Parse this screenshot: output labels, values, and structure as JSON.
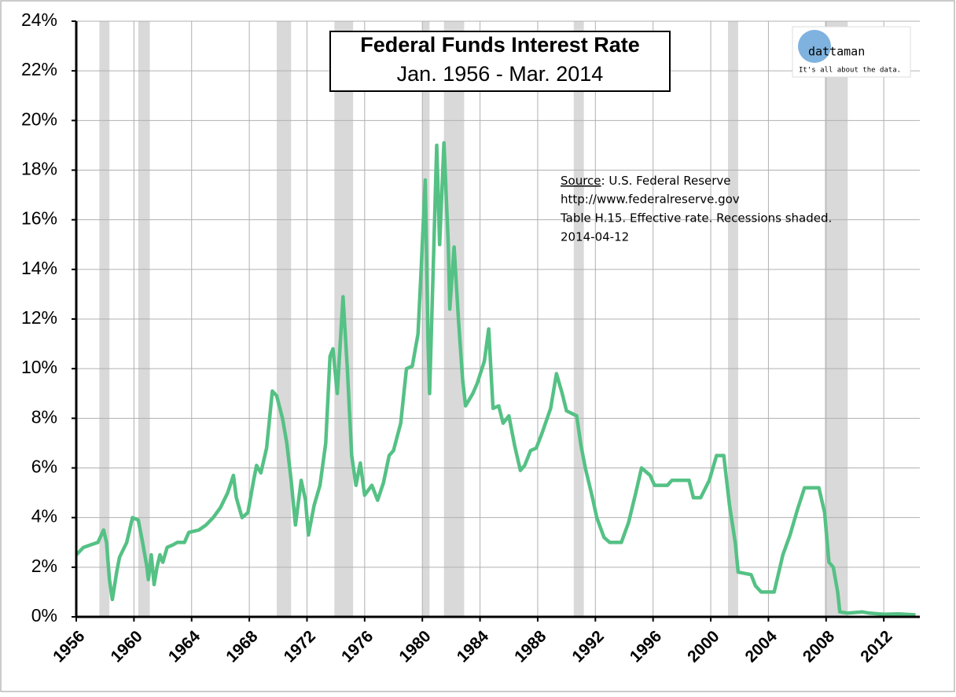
{
  "chart_data": {
    "type": "line",
    "title": "Federal Funds Interest Rate",
    "subtitle": "Jan. 1956 - Mar. 2014",
    "source_label": "Source",
    "source": ": U.S. Federal Reserve",
    "source_url": "http://www.federalreserve.gov",
    "note": "Table H.15. Effective rate. Recessions shaded.",
    "date": "2014-04-12",
    "logo": "dattaman",
    "tagline": "It's all about the data.",
    "color": "#55c185",
    "recession_color": "#d9d9d9",
    "grid": true,
    "xlim": [
      1956,
      2014.5
    ],
    "ylim": [
      0,
      24
    ],
    "xticks": [
      1956,
      1960,
      1964,
      1968,
      1972,
      1976,
      1980,
      1984,
      1988,
      1992,
      1996,
      2000,
      2004,
      2008,
      2012
    ],
    "yticks": [
      {
        "value": 0,
        "label": "0%"
      },
      {
        "value": 2,
        "label": "2%"
      },
      {
        "value": 4,
        "label": "4%"
      },
      {
        "value": 6,
        "label": "6%"
      },
      {
        "value": 8,
        "label": "8%"
      },
      {
        "value": 10,
        "label": "10%"
      },
      {
        "value": 12,
        "label": "12%"
      },
      {
        "value": 14,
        "label": "14%"
      },
      {
        "value": 16,
        "label": "16%"
      },
      {
        "value": 18,
        "label": "18%"
      },
      {
        "value": 20,
        "label": "20%"
      },
      {
        "value": 22,
        "label": "22%"
      },
      {
        "value": 24,
        "label": "24%"
      }
    ],
    "recessions": [
      [
        1957.6,
        1958.3
      ],
      [
        1960.3,
        1961.1
      ],
      [
        1969.9,
        1970.9
      ],
      [
        1973.9,
        1975.2
      ],
      [
        1980.0,
        1980.5
      ],
      [
        1981.5,
        1982.9
      ],
      [
        1990.5,
        1991.2
      ],
      [
        2001.2,
        2001.9
      ],
      [
        2007.9,
        2009.5
      ]
    ],
    "x": [
      1956.0,
      1956.5,
      1957.0,
      1957.5,
      1957.9,
      1958.1,
      1958.3,
      1958.5,
      1958.8,
      1959.0,
      1959.5,
      1959.9,
      1960.3,
      1960.6,
      1960.9,
      1961.0,
      1961.2,
      1961.4,
      1961.6,
      1961.8,
      1962.0,
      1962.3,
      1962.7,
      1963.0,
      1963.5,
      1963.8,
      1964.5,
      1965.0,
      1965.5,
      1966.0,
      1966.5,
      1966.9,
      1967.1,
      1967.5,
      1967.9,
      1968.3,
      1968.5,
      1968.8,
      1969.2,
      1969.6,
      1969.9,
      1970.3,
      1970.6,
      1970.9,
      1971.2,
      1971.6,
      1971.9,
      1972.1,
      1972.5,
      1972.9,
      1973.3,
      1973.6,
      1973.8,
      1974.1,
      1974.5,
      1974.8,
      1975.1,
      1975.4,
      1975.7,
      1976.0,
      1976.5,
      1976.9,
      1977.3,
      1977.7,
      1978.0,
      1978.5,
      1978.9,
      1979.3,
      1979.7,
      1979.9,
      1980.2,
      1980.4,
      1980.5,
      1980.8,
      1981.0,
      1981.2,
      1981.5,
      1981.8,
      1981.9,
      1982.2,
      1982.5,
      1982.8,
      1983.0,
      1983.5,
      1983.8,
      1984.3,
      1984.6,
      1984.9,
      1985.3,
      1985.6,
      1986.0,
      1986.4,
      1986.8,
      1987.1,
      1987.5,
      1987.9,
      1988.3,
      1988.9,
      1989.3,
      1989.7,
      1990.0,
      1990.7,
      1991.0,
      1991.3,
      1991.8,
      1992.1,
      1992.6,
      1993.0,
      1993.8,
      1994.3,
      1994.8,
      1995.2,
      1995.8,
      1996.1,
      1997.0,
      1997.3,
      1998.5,
      1998.8,
      1999.3,
      1999.9,
      2000.4,
      2000.9,
      2001.3,
      2001.7,
      2001.9,
      2002.8,
      2003.1,
      2003.5,
      2004.4,
      2005.0,
      2005.5,
      2006.0,
      2006.5,
      2007.5,
      2007.9,
      2008.2,
      2008.5,
      2008.8,
      2008.95,
      2009.5,
      2010.5,
      2011.0,
      2012.0,
      2013.0,
      2014.2
    ],
    "values": [
      2.5,
      2.8,
      2.9,
      3.0,
      3.5,
      3.0,
      1.5,
      0.7,
      1.8,
      2.4,
      3.0,
      4.0,
      3.9,
      3.0,
      2.0,
      1.5,
      2.5,
      1.3,
      2.0,
      2.5,
      2.2,
      2.8,
      2.9,
      3.0,
      3.0,
      3.4,
      3.5,
      3.7,
      4.0,
      4.4,
      5.0,
      5.7,
      4.8,
      4.0,
      4.2,
      5.5,
      6.1,
      5.8,
      6.8,
      9.1,
      8.9,
      8.0,
      7.0,
      5.5,
      3.7,
      5.5,
      4.7,
      3.3,
      4.5,
      5.3,
      7.0,
      10.5,
      10.8,
      9.0,
      12.9,
      10.0,
      6.5,
      5.3,
      6.2,
      4.9,
      5.3,
      4.7,
      5.4,
      6.5,
      6.7,
      7.8,
      10.0,
      10.1,
      11.4,
      13.8,
      17.6,
      11.0,
      9.0,
      15.0,
      19.0,
      15.0,
      19.1,
      15.0,
      12.4,
      14.9,
      12.0,
      9.5,
      8.5,
      9.0,
      9.4,
      10.3,
      11.6,
      8.4,
      8.5,
      7.8,
      8.1,
      6.9,
      5.9,
      6.1,
      6.7,
      6.8,
      7.4,
      8.4,
      9.8,
      9.0,
      8.3,
      8.1,
      6.9,
      6.0,
      4.8,
      4.0,
      3.2,
      3.0,
      3.0,
      3.8,
      5.0,
      6.0,
      5.7,
      5.3,
      5.3,
      5.5,
      5.5,
      4.8,
      4.8,
      5.5,
      6.5,
      6.5,
      4.5,
      3.0,
      1.8,
      1.7,
      1.25,
      1.0,
      1.0,
      2.5,
      3.3,
      4.3,
      5.2,
      5.2,
      4.2,
      2.2,
      2.0,
      1.0,
      0.2,
      0.15,
      0.2,
      0.15,
      0.1,
      0.12,
      0.08
    ]
  }
}
